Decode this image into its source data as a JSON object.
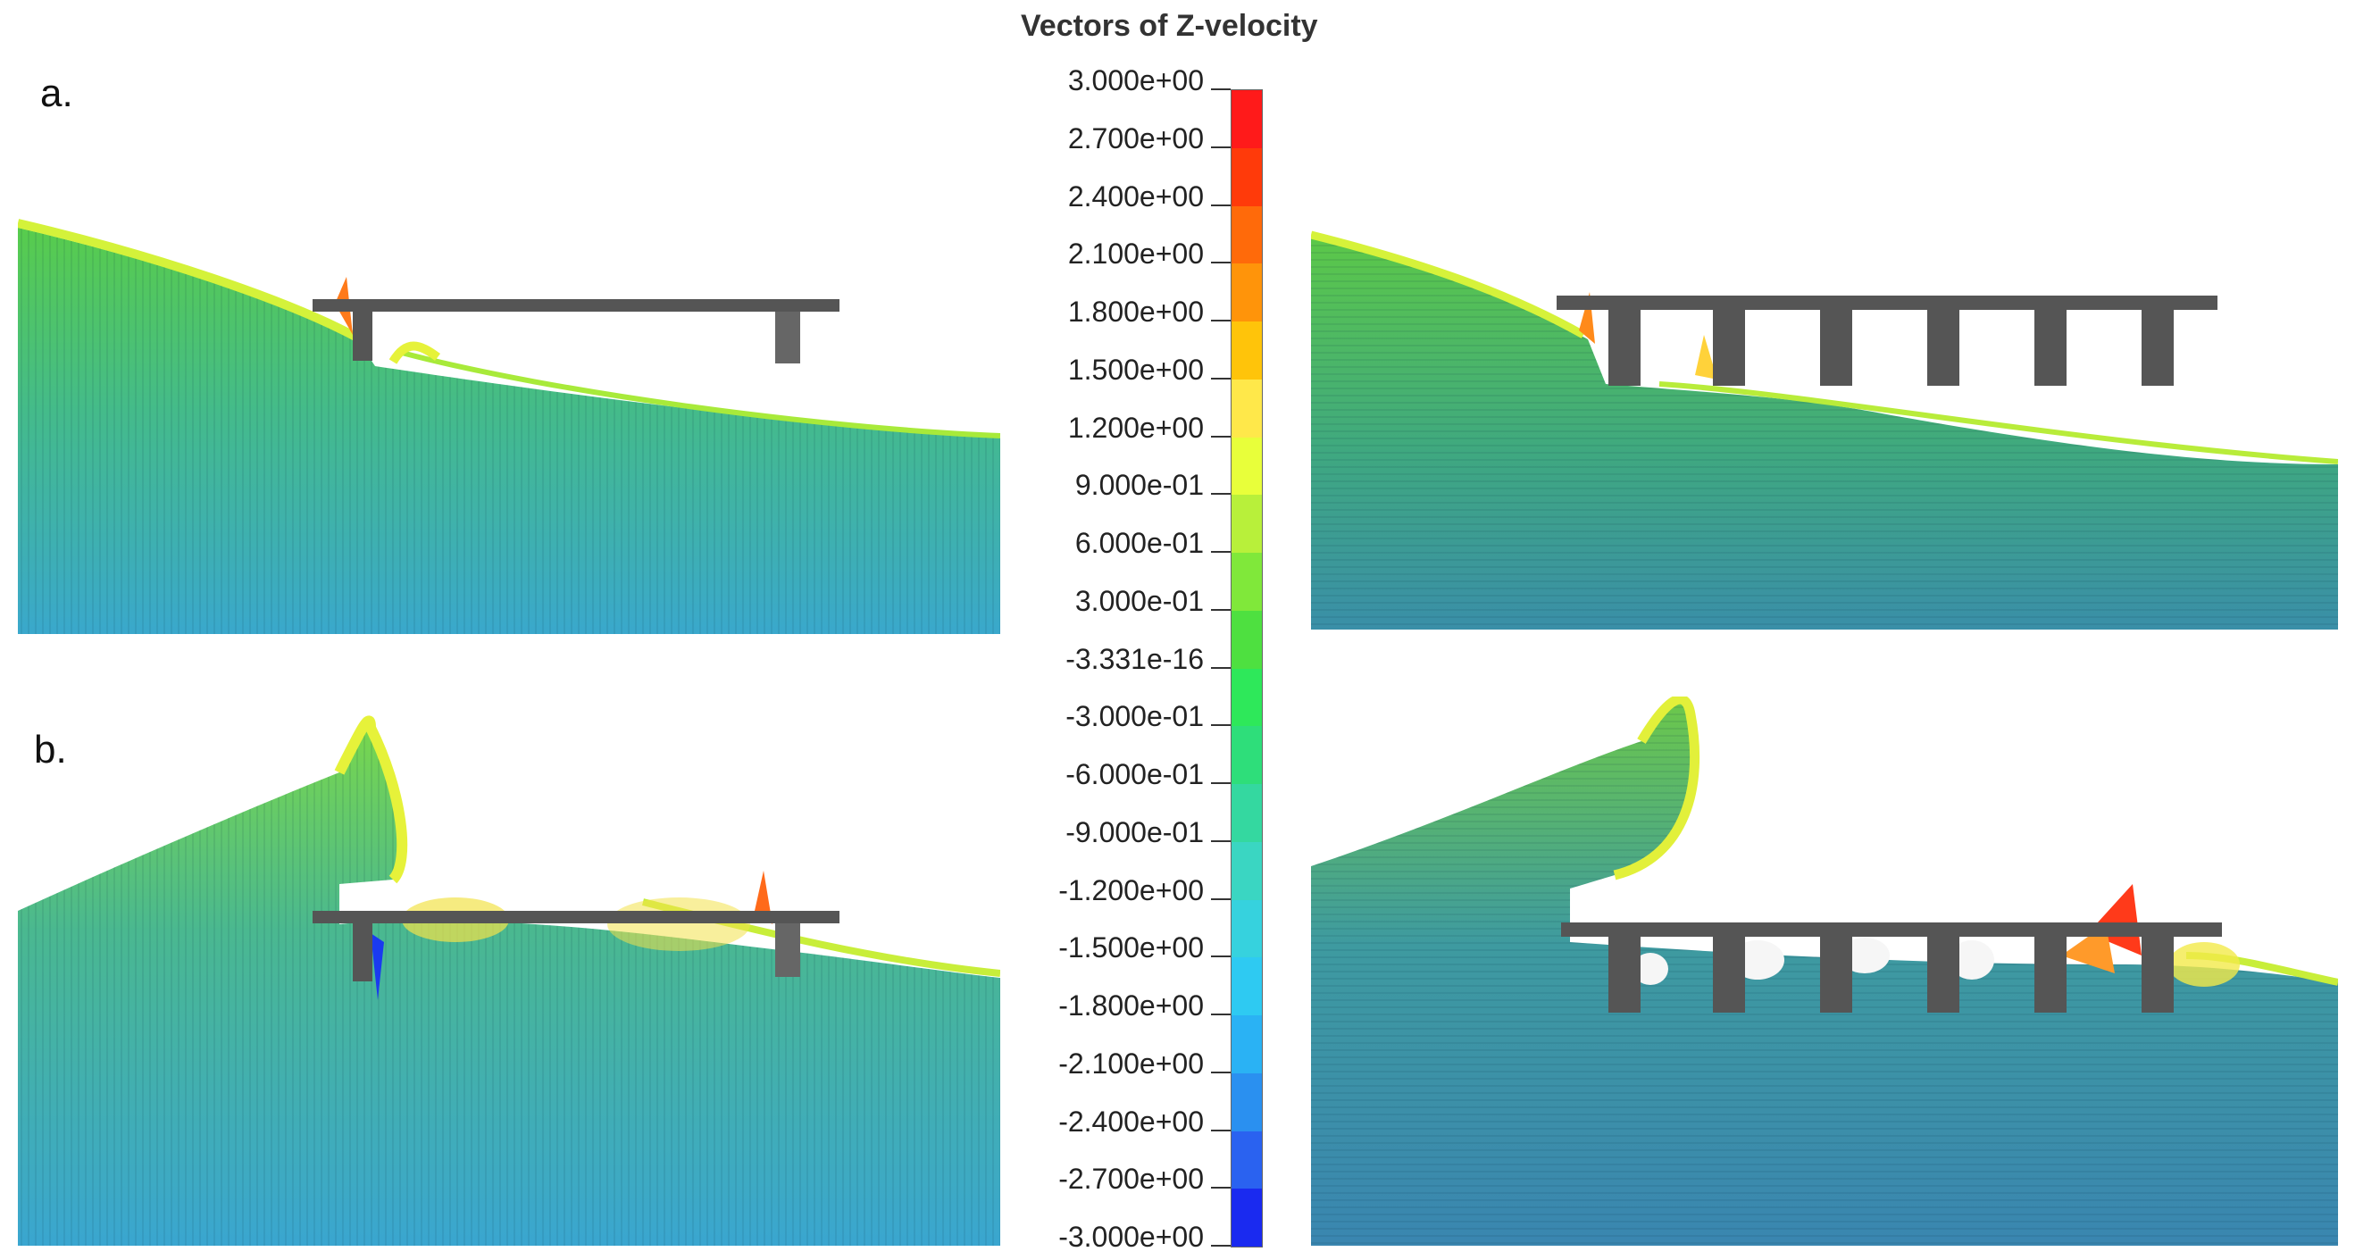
{
  "title": "Vectors of Z-velocity",
  "row_labels": [
    "a.",
    "b."
  ],
  "colorbar": {
    "ticks": [
      "3.000e+00",
      "2.700e+00",
      "2.400e+00",
      "2.100e+00",
      "1.800e+00",
      "1.500e+00",
      "1.200e+00",
      "9.000e-01",
      "6.000e-01",
      "3.000e-01",
      "-3.331e-16",
      "-3.000e-01",
      "-6.000e-01",
      "-9.000e-01",
      "-1.200e+00",
      "-1.500e+00",
      "-1.800e+00",
      "-2.100e+00",
      "-2.400e+00",
      "-2.700e+00",
      "-3.000e+00"
    ],
    "colors": [
      "#ff1a1a",
      "#ff3a0a",
      "#ff6a0a",
      "#ff940a",
      "#ffc40a",
      "#ffe84a",
      "#e8ff3a",
      "#b8f03a",
      "#80e83a",
      "#4ee040",
      "#2ee85a",
      "#2ede7a",
      "#34d8a0",
      "#3ad6c2",
      "#36d2de",
      "#2ecaf2",
      "#2ab2f4",
      "#2a90f0",
      "#2a62f0",
      "#1a2af0"
    ]
  }
}
